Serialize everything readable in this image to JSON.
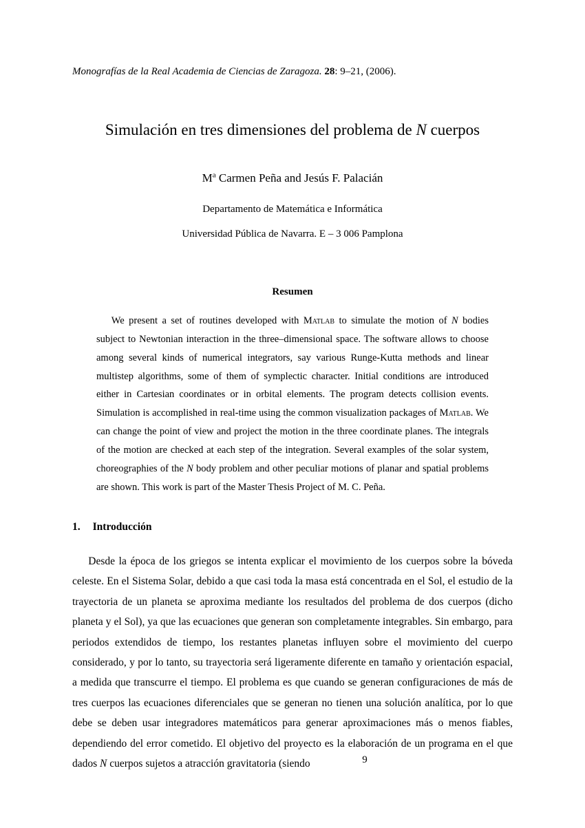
{
  "journal": {
    "name": "Monografías de la Real Academia de Ciencias de Zaragoza.",
    "volume": "28",
    "pages": "9–21",
    "year": "(2006)."
  },
  "title": {
    "prefix": "Simulación en tres dimensiones del problema de ",
    "variable": "N",
    "suffix": " cuerpos"
  },
  "authors": {
    "text_prefix": "M",
    "superscript": "a",
    "text_middle": " Carmen Peña and Jesús F. Palacián"
  },
  "affiliation1": "Departamento de Matemática e Informática",
  "affiliation2": "Universidad Pública de Navarra. E – 3 006 Pamplona",
  "resumen_heading": "Resumen",
  "abstract": {
    "p1_a": "We present a set of routines developed with ",
    "p1_matlab1": "Matlab",
    "p1_b": " to simulate the motion of ",
    "p1_N": "N",
    "p1_c": " bodies subject to Newtonian interaction in the three–dimensional space. The software allows to choose among several kinds of numerical integrators, say various Runge-Kutta methods and linear multistep algorithms, some of them of symplectic character. Initial conditions are introduced either in Cartesian coordinates or in orbital elements. The program detects collision events. Simulation is accomplished in real-time using the common visualization packages of ",
    "p1_matlab2": "Matlab",
    "p1_d": ". We can change the point of view and project the motion in the three coordinate planes. The integrals of the motion are checked at each step of the integration. Several examples of the solar system, choreographies of the ",
    "p1_N2": "N",
    "p1_e": " body problem and other peculiar motions of planar and spatial problems are shown. This work is part of the Master Thesis Project of M. C. Peña."
  },
  "section1": {
    "number": "1.",
    "heading": "Introducción"
  },
  "body": {
    "p1_a": "Desde la época de los griegos se intenta explicar el movimiento de los cuerpos sobre la bóveda celeste. En el Sistema Solar, debido a que casi toda la masa está concentrada en el Sol, el estudio de la trayectoria de un planeta se aproxima mediante los resultados del problema de dos cuerpos (dicho planeta y el Sol), ya que las ecuaciones que generan son completamente integrables. Sin embargo, para periodos extendidos de tiempo, los restantes planetas influyen sobre el movimiento del cuerpo considerado, y por lo tanto, su trayectoria será ligeramente diferente en tamaño y orientación espacial, a medida que transcurre el tiempo. El problema es que cuando se generan configuraciones de más de tres cuerpos las ecuaciones diferenciales que se generan no tienen una solución analítica, por lo que debe se deben usar integradores matemáticos para generar aproximaciones más o menos fiables, dependiendo del error cometido. El objetivo del proyecto es la elaboración de un programa en el que dados ",
    "p1_N": "N",
    "p1_b": " cuerpos sujetos a atracción gravitatoria (siendo"
  },
  "page_number": "9"
}
